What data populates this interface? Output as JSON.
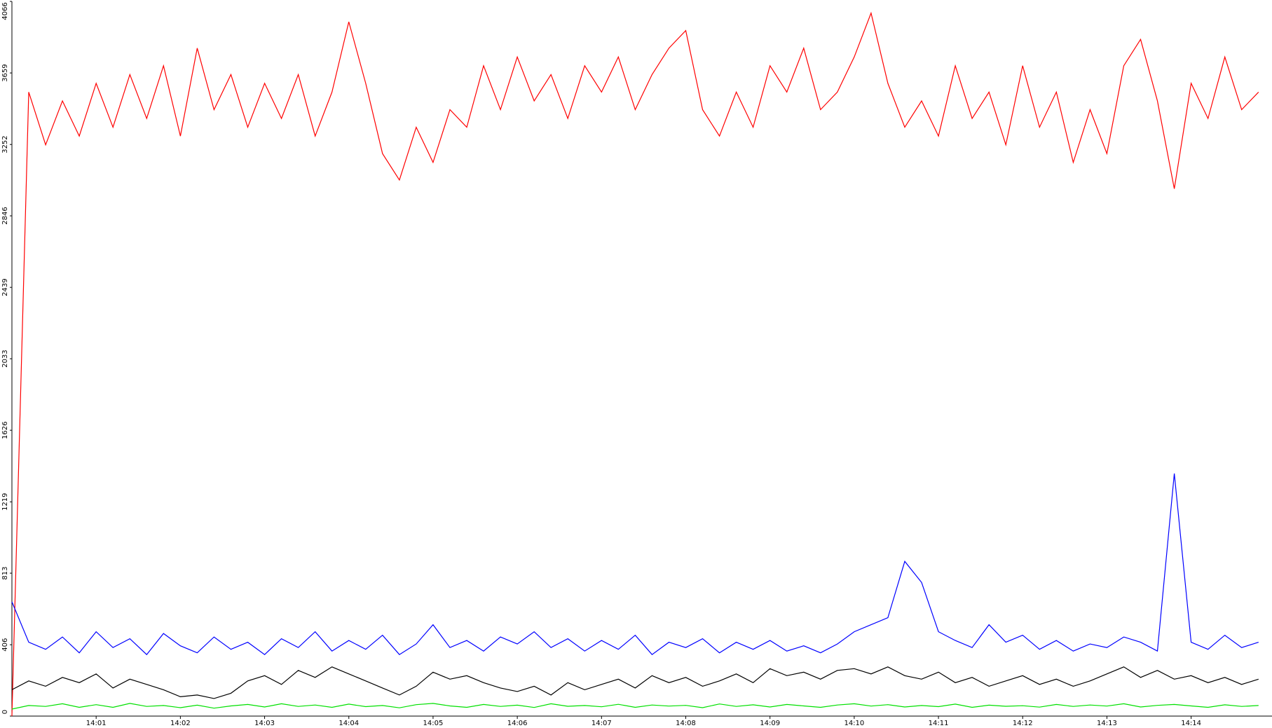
{
  "chart_data": {
    "type": "line",
    "x": [
      0,
      0.2,
      0.4,
      0.6,
      0.8,
      1,
      1.2,
      1.4,
      1.6,
      1.8,
      2,
      2.2,
      2.4,
      2.6,
      2.8,
      3,
      3.2,
      3.4,
      3.6,
      3.8,
      4,
      4.2,
      4.4,
      4.6,
      4.8,
      5,
      5.2,
      5.4,
      5.6,
      5.8,
      6,
      6.2,
      6.4,
      6.6,
      6.8,
      7,
      7.2,
      7.4,
      7.6,
      7.8,
      8,
      8.2,
      8.4,
      8.6,
      8.8,
      9,
      9.2,
      9.4,
      9.6,
      9.8,
      10,
      10.2,
      10.4,
      10.6,
      10.8,
      11,
      11.2,
      11.4,
      11.6,
      11.8,
      12,
      12.2,
      12.4,
      12.6,
      12.8,
      13,
      13.2,
      13.4,
      13.6,
      13.8,
      14,
      14.2,
      14.4,
      14.6,
      14.8
    ],
    "series": [
      {
        "color": "#ff0000",
        "values": [
          0,
          3550,
          3250,
          3500,
          3300,
          3600,
          3350,
          3650,
          3400,
          3700,
          3300,
          3800,
          3450,
          3650,
          3350,
          3600,
          3400,
          3650,
          3300,
          3550,
          3950,
          3600,
          3200,
          3050,
          3350,
          3150,
          3450,
          3350,
          3700,
          3450,
          3750,
          3500,
          3650,
          3400,
          3700,
          3550,
          3750,
          3450,
          3650,
          3800,
          3900,
          3450,
          3300,
          3550,
          3350,
          3700,
          3550,
          3800,
          3450,
          3550,
          3750,
          4000,
          3600,
          3350,
          3500,
          3300,
          3700,
          3400,
          3550,
          3250,
          3700,
          3350,
          3550,
          3150,
          3450,
          3200,
          3700,
          3850,
          3500,
          3000,
          3600,
          3400,
          3750,
          3450,
          3550
        ]
      },
      {
        "color": "#0000ff",
        "values": [
          650,
          420,
          380,
          450,
          360,
          480,
          390,
          440,
          350,
          470,
          400,
          360,
          450,
          380,
          420,
          350,
          440,
          390,
          480,
          370,
          430,
          380,
          460,
          350,
          410,
          520,
          390,
          430,
          370,
          450,
          410,
          480,
          390,
          440,
          370,
          430,
          380,
          460,
          350,
          420,
          390,
          440,
          360,
          420,
          380,
          430,
          370,
          400,
          360,
          410,
          480,
          520,
          560,
          880,
          760,
          480,
          430,
          390,
          520,
          420,
          460,
          380,
          430,
          370,
          410,
          390,
          450,
          420,
          370,
          1380,
          420,
          380,
          460,
          390,
          420
        ]
      },
      {
        "color": "#000000",
        "values": [
          150,
          200,
          170,
          220,
          190,
          240,
          160,
          210,
          180,
          150,
          110,
          120,
          100,
          130,
          200,
          230,
          180,
          260,
          220,
          280,
          240,
          200,
          160,
          120,
          170,
          250,
          210,
          230,
          190,
          160,
          140,
          170,
          120,
          190,
          150,
          180,
          210,
          160,
          230,
          190,
          220,
          170,
          200,
          240,
          190,
          270,
          230,
          250,
          210,
          260,
          270,
          240,
          280,
          230,
          210,
          250,
          190,
          220,
          170,
          200,
          230,
          180,
          210,
          170,
          200,
          240,
          280,
          220,
          260,
          210,
          230,
          190,
          220,
          180,
          210
        ]
      },
      {
        "color": "#00e000",
        "values": [
          40,
          60,
          55,
          70,
          50,
          65,
          50,
          72,
          55,
          60,
          48,
          62,
          45,
          58,
          66,
          52,
          70,
          55,
          63,
          50,
          68,
          54,
          60,
          47,
          65,
          72,
          58,
          50,
          66,
          55,
          62,
          49,
          70,
          56,
          60,
          53,
          67,
          50,
          63,
          57,
          61,
          48,
          69,
          55,
          64,
          52,
          66,
          58,
          50,
          63,
          70,
          57,
          65,
          52,
          60,
          54,
          68,
          50,
          62,
          56,
          59,
          51,
          66,
          55,
          63,
          57,
          70,
          52,
          61,
          66,
          58,
          50,
          64,
          55,
          60
        ]
      }
    ],
    "xlim": [
      0,
      14.96
    ],
    "xticks": [
      {
        "value": 1,
        "label": "14:01"
      },
      {
        "value": 2,
        "label": "14:02"
      },
      {
        "value": 3,
        "label": "14:03"
      },
      {
        "value": 4,
        "label": "14:04"
      },
      {
        "value": 5,
        "label": "14:05"
      },
      {
        "value": 6,
        "label": "14:06"
      },
      {
        "value": 7,
        "label": "14:07"
      },
      {
        "value": 8,
        "label": "14:08"
      },
      {
        "value": 9,
        "label": "14:09"
      },
      {
        "value": 10,
        "label": "14:10"
      },
      {
        "value": 11,
        "label": "14:11"
      },
      {
        "value": 12,
        "label": "14:12"
      },
      {
        "value": 13,
        "label": "14:13"
      },
      {
        "value": 14,
        "label": "14:14"
      }
    ],
    "ylim": [
      0,
      4066
    ],
    "yticks": [
      0,
      406,
      813,
      1219,
      1626,
      2033,
      2439,
      2846,
      3252,
      3659,
      4066
    ]
  }
}
